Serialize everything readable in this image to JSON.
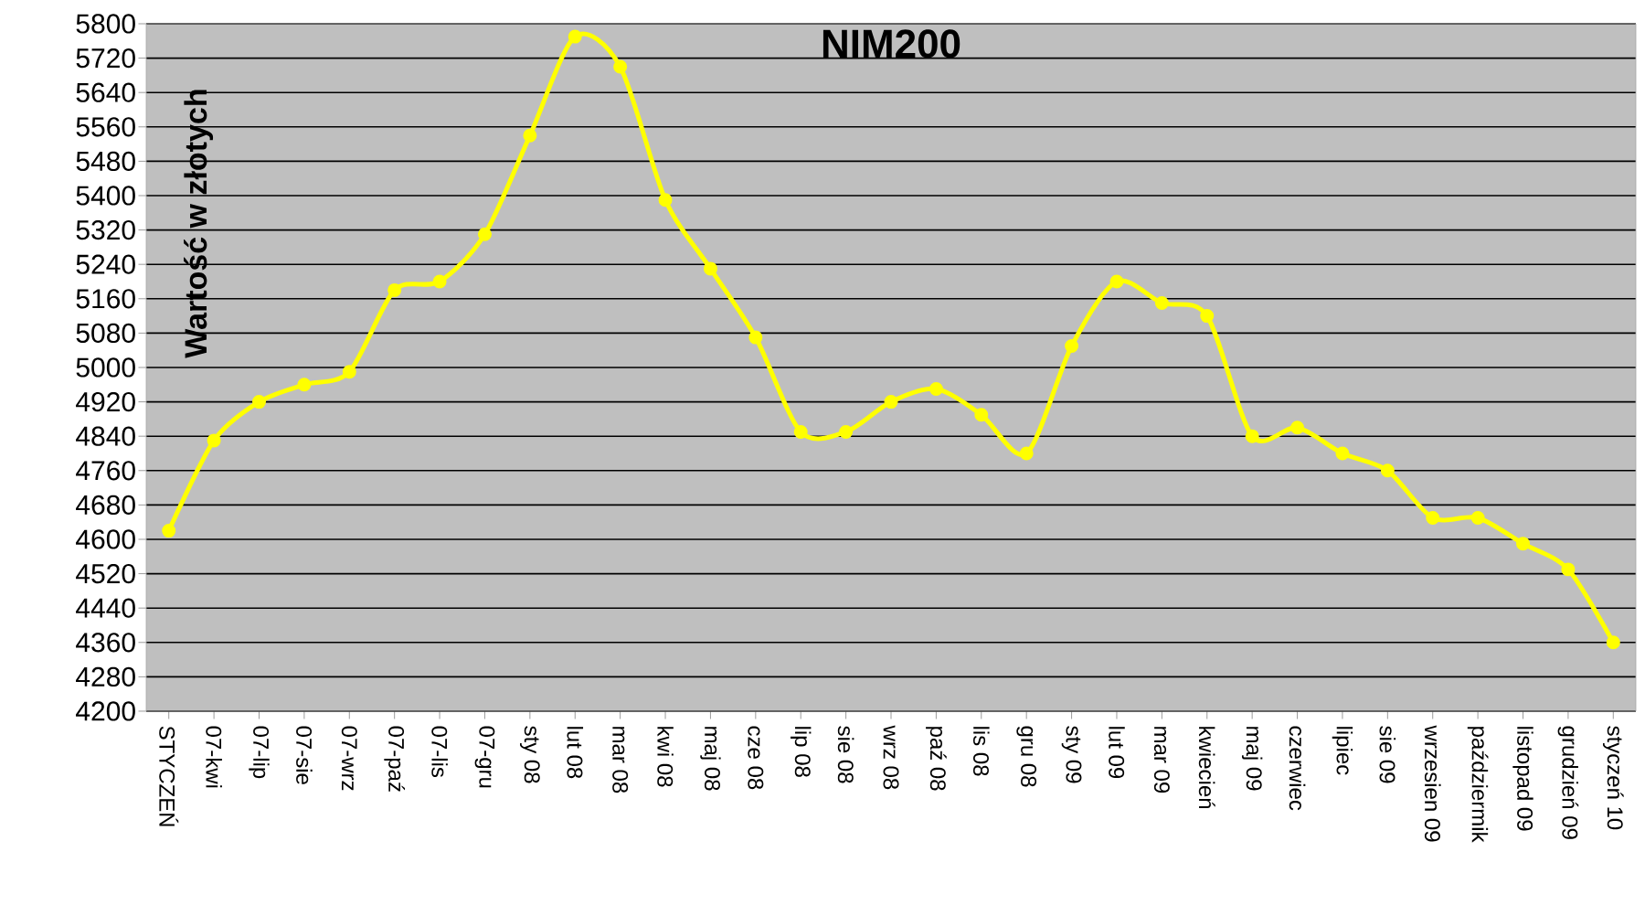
{
  "chart_data": {
    "type": "line",
    "title": "NIM200",
    "ylabel": "Wartość w złotych",
    "categories": [
      "STYCZEŃ",
      "07-kwi",
      "07-lip",
      "07-sie",
      "07-wrz",
      "07-paź",
      "07-lis",
      "07-gru",
      "sty 08",
      "lut 08",
      "mar 08",
      "kwi 08",
      "maj 08",
      "cze 08",
      "lip 08",
      "sie 08",
      "wrz 08",
      "paź 08",
      "lis 08",
      "gru 08",
      "sty 09",
      "lut 09",
      "mar 09",
      "kwiecień",
      "maj 09",
      "czerwiec",
      "lipiec",
      "sie 09",
      "wrzesien 09",
      "paździermik",
      "listopad 09",
      "grudzień 09",
      "styczeń 10"
    ],
    "values": [
      4620,
      4830,
      4920,
      4960,
      4990,
      5180,
      5200,
      5310,
      5540,
      5770,
      5700,
      5390,
      5230,
      5070,
      4850,
      4850,
      4920,
      4950,
      4890,
      4800,
      5050,
      5200,
      5150,
      5120,
      4840,
      4860,
      4800,
      4760,
      4650,
      4650,
      4590,
      4530,
      4360
    ],
    "color": "#ffff00",
    "marker": "circle",
    "grid": "y",
    "ylim": [
      4200,
      5800
    ],
    "yticks": [
      4200,
      4280,
      4360,
      4440,
      4520,
      4600,
      4680,
      4760,
      4840,
      4920,
      5000,
      5080,
      5160,
      5240,
      5320,
      5400,
      5480,
      5560,
      5640,
      5720,
      5800
    ]
  }
}
